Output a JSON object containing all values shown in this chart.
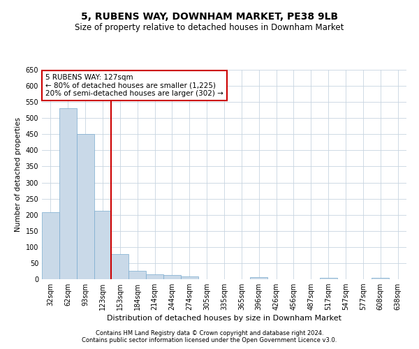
{
  "title": "5, RUBENS WAY, DOWNHAM MARKET, PE38 9LB",
  "subtitle": "Size of property relative to detached houses in Downham Market",
  "xlabel": "Distribution of detached houses by size in Downham Market",
  "ylabel": "Number of detached properties",
  "footnote1": "Contains HM Land Registry data © Crown copyright and database right 2024.",
  "footnote2": "Contains public sector information licensed under the Open Government Licence v3.0.",
  "annotation_line1": "5 RUBENS WAY: 127sqm",
  "annotation_line2": "← 80% of detached houses are smaller (1,225)",
  "annotation_line3": "20% of semi-detached houses are larger (302) →",
  "bar_color": "#c9d9e8",
  "bar_edge_color": "#7aabcf",
  "vline_color": "#cc0000",
  "vline_x_index": 3,
  "categories": [
    "32sqm",
    "62sqm",
    "93sqm",
    "123sqm",
    "153sqm",
    "184sqm",
    "214sqm",
    "244sqm",
    "274sqm",
    "305sqm",
    "335sqm",
    "365sqm",
    "396sqm",
    "426sqm",
    "456sqm",
    "487sqm",
    "517sqm",
    "547sqm",
    "577sqm",
    "608sqm",
    "638sqm"
  ],
  "values": [
    207,
    530,
    450,
    213,
    78,
    26,
    15,
    12,
    8,
    0,
    0,
    0,
    6,
    0,
    0,
    0,
    5,
    0,
    0,
    5,
    0
  ],
  "ylim": [
    0,
    650
  ],
  "yticks": [
    0,
    50,
    100,
    150,
    200,
    250,
    300,
    350,
    400,
    450,
    500,
    550,
    600,
    650
  ],
  "background_color": "#ffffff",
  "grid_color": "#c8d4e0",
  "title_fontsize": 10,
  "subtitle_fontsize": 8.5,
  "xlabel_fontsize": 8,
  "ylabel_fontsize": 7.5,
  "tick_fontsize": 7,
  "footnote_fontsize": 6,
  "ann_fontsize": 7.5
}
